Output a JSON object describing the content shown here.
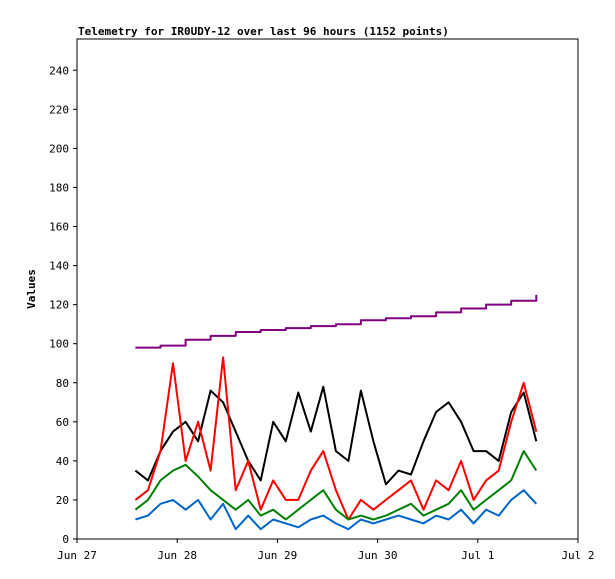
{
  "chart_data": {
    "type": "line",
    "title": "Telemetry for IR0UDY-12 over last 96 hours (1152 points)",
    "xlabel": "",
    "ylabel": "Values",
    "xlim": [
      "2023-06-27",
      "2023-07-02"
    ],
    "ylim": [
      0,
      256
    ],
    "x_ticks": [
      {
        "label": "Jun 27",
        "day": "2023-06-27"
      },
      {
        "label": "Jun 28",
        "day": "2023-06-28"
      },
      {
        "label": "Jun 29",
        "day": "2023-06-29"
      },
      {
        "label": "Jun 30",
        "day": "2023-06-30"
      },
      {
        "label": "Jul 1",
        "day": "2023-07-01"
      },
      {
        "label": "Jul 2",
        "day": "2023-07-02"
      }
    ],
    "y_ticks": [
      0,
      20,
      40,
      60,
      80,
      100,
      120,
      140,
      160,
      180,
      200,
      220,
      240
    ],
    "grid": false,
    "legend": "none",
    "series": [
      {
        "color": "#800080",
        "x": [
          "2023-06-27 14:00",
          "2023-06-27 20:00",
          "2023-06-28 02:00",
          "2023-06-28 08:00",
          "2023-06-28 14:00",
          "2023-06-28 20:00",
          "2023-06-29 02:00",
          "2023-06-29 08:00",
          "2023-06-29 14:00",
          "2023-06-29 20:00",
          "2023-06-30 02:00",
          "2023-06-30 08:00",
          "2023-06-30 14:00",
          "2023-06-30 20:00",
          "2023-07-01 02:00",
          "2023-07-01 08:00",
          "2023-07-01 14:00"
        ],
        "values": [
          98,
          99,
          102,
          104,
          106,
          107,
          108,
          109,
          110,
          112,
          113,
          114,
          116,
          118,
          120,
          122,
          125
        ]
      },
      {
        "color": "#000000",
        "x": [
          "2023-06-27 14:00",
          "2023-06-27 17:00",
          "2023-06-27 20:00",
          "2023-06-27 23:00",
          "2023-06-28 02:00",
          "2023-06-28 05:00",
          "2023-06-28 08:00",
          "2023-06-28 11:00",
          "2023-06-28 14:00",
          "2023-06-28 17:00",
          "2023-06-28 20:00",
          "2023-06-28 23:00",
          "2023-06-29 02:00",
          "2023-06-29 05:00",
          "2023-06-29 08:00",
          "2023-06-29 11:00",
          "2023-06-29 14:00",
          "2023-06-29 17:00",
          "2023-06-29 20:00",
          "2023-06-29 23:00",
          "2023-06-30 02:00",
          "2023-06-30 05:00",
          "2023-06-30 08:00",
          "2023-06-30 11:00",
          "2023-06-30 14:00",
          "2023-06-30 17:00",
          "2023-06-30 20:00",
          "2023-06-30 23:00",
          "2023-07-01 02:00",
          "2023-07-01 05:00",
          "2023-07-01 08:00",
          "2023-07-01 11:00",
          "2023-07-01 14:00"
        ],
        "values": [
          35,
          30,
          45,
          55,
          60,
          50,
          76,
          70,
          55,
          40,
          30,
          60,
          50,
          75,
          55,
          78,
          45,
          40,
          76,
          50,
          28,
          35,
          33,
          50,
          65,
          70,
          60,
          45,
          45,
          40,
          65,
          75,
          50
        ]
      },
      {
        "color": "#ff0000",
        "x": [
          "2023-06-27 14:00",
          "2023-06-27 17:00",
          "2023-06-27 20:00",
          "2023-06-27 23:00",
          "2023-06-28 02:00",
          "2023-06-28 05:00",
          "2023-06-28 08:00",
          "2023-06-28 11:00",
          "2023-06-28 14:00",
          "2023-06-28 17:00",
          "2023-06-28 20:00",
          "2023-06-28 23:00",
          "2023-06-29 02:00",
          "2023-06-29 05:00",
          "2023-06-29 08:00",
          "2023-06-29 11:00",
          "2023-06-29 14:00",
          "2023-06-29 17:00",
          "2023-06-29 20:00",
          "2023-06-29 23:00",
          "2023-06-30 02:00",
          "2023-06-30 05:00",
          "2023-06-30 08:00",
          "2023-06-30 11:00",
          "2023-06-30 14:00",
          "2023-06-30 17:00",
          "2023-06-30 20:00",
          "2023-06-30 23:00",
          "2023-07-01 02:00",
          "2023-07-01 05:00",
          "2023-07-01 08:00",
          "2023-07-01 11:00",
          "2023-07-01 14:00"
        ],
        "values": [
          20,
          25,
          45,
          90,
          40,
          60,
          35,
          93,
          25,
          40,
          15,
          30,
          20,
          20,
          35,
          45,
          25,
          10,
          20,
          15,
          20,
          25,
          30,
          15,
          30,
          25,
          40,
          20,
          30,
          35,
          60,
          80,
          55
        ]
      },
      {
        "color": "#008000",
        "x": [
          "2023-06-27 14:00",
          "2023-06-27 17:00",
          "2023-06-27 20:00",
          "2023-06-27 23:00",
          "2023-06-28 02:00",
          "2023-06-28 05:00",
          "2023-06-28 08:00",
          "2023-06-28 11:00",
          "2023-06-28 14:00",
          "2023-06-28 17:00",
          "2023-06-28 20:00",
          "2023-06-28 23:00",
          "2023-06-29 02:00",
          "2023-06-29 05:00",
          "2023-06-29 08:00",
          "2023-06-29 11:00",
          "2023-06-29 14:00",
          "2023-06-29 17:00",
          "2023-06-29 20:00",
          "2023-06-29 23:00",
          "2023-06-30 02:00",
          "2023-06-30 05:00",
          "2023-06-30 08:00",
          "2023-06-30 11:00",
          "2023-06-30 14:00",
          "2023-06-30 17:00",
          "2023-06-30 20:00",
          "2023-06-30 23:00",
          "2023-07-01 02:00",
          "2023-07-01 05:00",
          "2023-07-01 08:00",
          "2023-07-01 11:00",
          "2023-07-01 14:00"
        ],
        "values": [
          15,
          20,
          30,
          35,
          38,
          32,
          25,
          20,
          15,
          20,
          12,
          15,
          10,
          15,
          20,
          25,
          15,
          10,
          12,
          10,
          12,
          15,
          18,
          12,
          15,
          18,
          25,
          15,
          20,
          25,
          30,
          45,
          35
        ]
      },
      {
        "color": "#0066cc",
        "x": [
          "2023-06-27 14:00",
          "2023-06-27 17:00",
          "2023-06-27 20:00",
          "2023-06-27 23:00",
          "2023-06-28 02:00",
          "2023-06-28 05:00",
          "2023-06-28 08:00",
          "2023-06-28 11:00",
          "2023-06-28 14:00",
          "2023-06-28 17:00",
          "2023-06-28 20:00",
          "2023-06-28 23:00",
          "2023-06-29 02:00",
          "2023-06-29 05:00",
          "2023-06-29 08:00",
          "2023-06-29 11:00",
          "2023-06-29 14:00",
          "2023-06-29 17:00",
          "2023-06-29 20:00",
          "2023-06-29 23:00",
          "2023-06-30 02:00",
          "2023-06-30 05:00",
          "2023-06-30 08:00",
          "2023-06-30 11:00",
          "2023-06-30 14:00",
          "2023-06-30 17:00",
          "2023-06-30 20:00",
          "2023-06-30 23:00",
          "2023-07-01 02:00",
          "2023-07-01 05:00",
          "2023-07-01 08:00",
          "2023-07-01 11:00",
          "2023-07-01 14:00"
        ],
        "values": [
          10,
          12,
          18,
          20,
          15,
          20,
          10,
          18,
          5,
          12,
          5,
          10,
          8,
          6,
          10,
          12,
          8,
          5,
          10,
          8,
          10,
          12,
          10,
          8,
          12,
          10,
          15,
          8,
          15,
          12,
          20,
          25,
          18
        ]
      }
    ]
  }
}
